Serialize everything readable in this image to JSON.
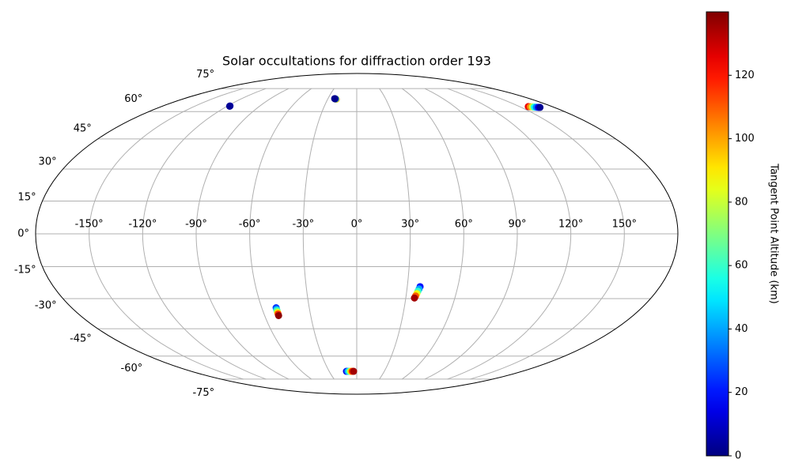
{
  "chart_data": {
    "type": "scatter",
    "projection": "mollweide",
    "title": "Solar occultations for diffraction order 193",
    "x": [
      -117.8,
      -117.6,
      -21.2,
      -21.6,
      -22.0,
      -22.6,
      -23.0,
      158.0,
      159.5,
      161.0,
      162.5,
      164.0,
      165.5,
      167.0,
      -50.9,
      -50.9,
      -50.9,
      -50.9,
      -50.9,
      -50.9,
      37.6,
      37.2,
      36.7,
      36.3,
      35.8,
      35.3,
      -11.2,
      -9.6,
      -8.1,
      -6.5,
      -5.0,
      -3.4
    ],
    "y": [
      63.4,
      63.2,
      67.6,
      67.7,
      67.8,
      67.9,
      68.0,
      63.0,
      62.9,
      62.8,
      62.7,
      62.6,
      62.5,
      62.5,
      -34.4,
      -35.3,
      -36.0,
      -36.8,
      -37.5,
      -38.3,
      -24.3,
      -25.4,
      -26.5,
      -27.6,
      -28.7,
      -29.7,
      -69.5,
      -69.5,
      -69.5,
      -69.5,
      -69.5,
      -69.5
    ],
    "c": [
      8,
      3,
      100,
      90,
      40,
      5,
      2,
      125,
      105,
      80,
      55,
      35,
      15,
      3,
      25,
      45,
      65,
      90,
      115,
      138,
      20,
      40,
      60,
      85,
      110,
      135,
      15,
      40,
      60,
      90,
      115,
      135
    ],
    "colormap": "jet",
    "clim": [
      0,
      140
    ],
    "colorbar_label": "Tangent Point Altitude (km)",
    "colorbar_ticks": [
      0,
      20,
      40,
      60,
      80,
      100,
      120
    ],
    "xlim": [
      -180,
      180
    ],
    "ylim": [
      -90,
      90
    ],
    "xticks": [
      {
        "value": -150,
        "label": "-150°"
      },
      {
        "value": -120,
        "label": "-120°"
      },
      {
        "value": -90,
        "label": "-90°"
      },
      {
        "value": -60,
        "label": "-60°"
      },
      {
        "value": -30,
        "label": "-30°"
      },
      {
        "value": 0,
        "label": "0°"
      },
      {
        "value": 30,
        "label": "30°"
      },
      {
        "value": 60,
        "label": "60°"
      },
      {
        "value": 90,
        "label": "90°"
      },
      {
        "value": 120,
        "label": "120°"
      },
      {
        "value": 150,
        "label": "150°"
      }
    ],
    "yticks": [
      {
        "value": -75,
        "label": "-75°"
      },
      {
        "value": -60,
        "label": "-60°"
      },
      {
        "value": -45,
        "label": "-45°"
      },
      {
        "value": -30,
        "label": "-30°"
      },
      {
        "value": -15,
        "label": "-15°"
      },
      {
        "value": 0,
        "label": "0°"
      },
      {
        "value": 15,
        "label": "15°"
      },
      {
        "value": 30,
        "label": "30°"
      },
      {
        "value": 45,
        "label": "45°"
      },
      {
        "value": 60,
        "label": "60°"
      },
      {
        "value": 75,
        "label": "75°"
      }
    ],
    "grid": true
  }
}
